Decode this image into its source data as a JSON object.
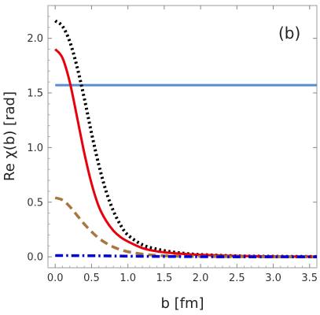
{
  "chart_data": {
    "type": "line",
    "panel_label": "(b)",
    "xlabel": "b [fm]",
    "ylabel": "Re χ(b) [rad]",
    "xlim": [
      -0.1,
      3.6
    ],
    "ylim": [
      -0.1,
      2.3
    ],
    "x_ticks": [
      0.0,
      0.5,
      1.0,
      1.5,
      2.0,
      2.5,
      3.0,
      3.5
    ],
    "x_tick_labels": [
      "0.0",
      "0.5",
      "1.0",
      "1.5",
      "2.0",
      "2.5",
      "3.0",
      "3.5"
    ],
    "y_ticks": [
      0.0,
      0.5,
      1.0,
      1.5,
      2.0
    ],
    "y_tick_labels": [
      "0.0",
      "0.5",
      "1.0",
      "1.5",
      "2.0"
    ],
    "grid": false,
    "series": [
      {
        "color": "#5b8bd0",
        "dash": "solid",
        "x": [
          0.0,
          3.6
        ],
        "y": [
          1.571,
          1.571
        ]
      },
      {
        "color": "#000000",
        "dash": "dotted",
        "x": [
          0.0,
          0.1,
          0.2,
          0.3,
          0.4,
          0.5,
          0.6,
          0.7,
          0.8,
          0.9,
          1.0,
          1.2,
          1.4,
          1.6,
          1.8,
          2.0,
          2.5,
          3.0,
          3.6
        ],
        "y": [
          2.16,
          2.11,
          1.97,
          1.74,
          1.45,
          1.13,
          0.84,
          0.6,
          0.42,
          0.29,
          0.2,
          0.11,
          0.07,
          0.045,
          0.03,
          0.02,
          0.008,
          0.004,
          0.002
        ]
      },
      {
        "color": "#e8000b",
        "dash": "solid",
        "x": [
          0.0,
          0.1,
          0.2,
          0.3,
          0.4,
          0.5,
          0.6,
          0.7,
          0.8,
          0.9,
          1.0,
          1.2,
          1.4,
          1.6,
          1.8,
          2.0,
          2.5,
          3.0,
          3.6
        ],
        "y": [
          1.9,
          1.82,
          1.6,
          1.28,
          0.95,
          0.67,
          0.46,
          0.33,
          0.24,
          0.18,
          0.14,
          0.08,
          0.05,
          0.035,
          0.025,
          0.018,
          0.008,
          0.004,
          0.002
        ]
      },
      {
        "color": "#a8763e",
        "dash": "dashed",
        "x": [
          0.0,
          0.1,
          0.2,
          0.3,
          0.4,
          0.5,
          0.6,
          0.7,
          0.8,
          0.9,
          1.0,
          1.2,
          1.4,
          1.6,
          1.8,
          2.0,
          2.5,
          3.0,
          3.6
        ],
        "y": [
          0.54,
          0.52,
          0.46,
          0.38,
          0.3,
          0.23,
          0.17,
          0.125,
          0.09,
          0.065,
          0.047,
          0.025,
          0.013,
          0.008,
          0.005,
          0.003,
          0.001,
          0.0,
          0.0
        ]
      },
      {
        "color": "#0000d8",
        "dash": "dashdot",
        "x": [
          0.0,
          0.5,
          1.0,
          1.5,
          2.0,
          2.5,
          3.0,
          3.6
        ],
        "y": [
          0.012,
          0.01,
          0.006,
          0.003,
          0.001,
          0.0,
          0.0,
          0.0
        ]
      }
    ]
  }
}
